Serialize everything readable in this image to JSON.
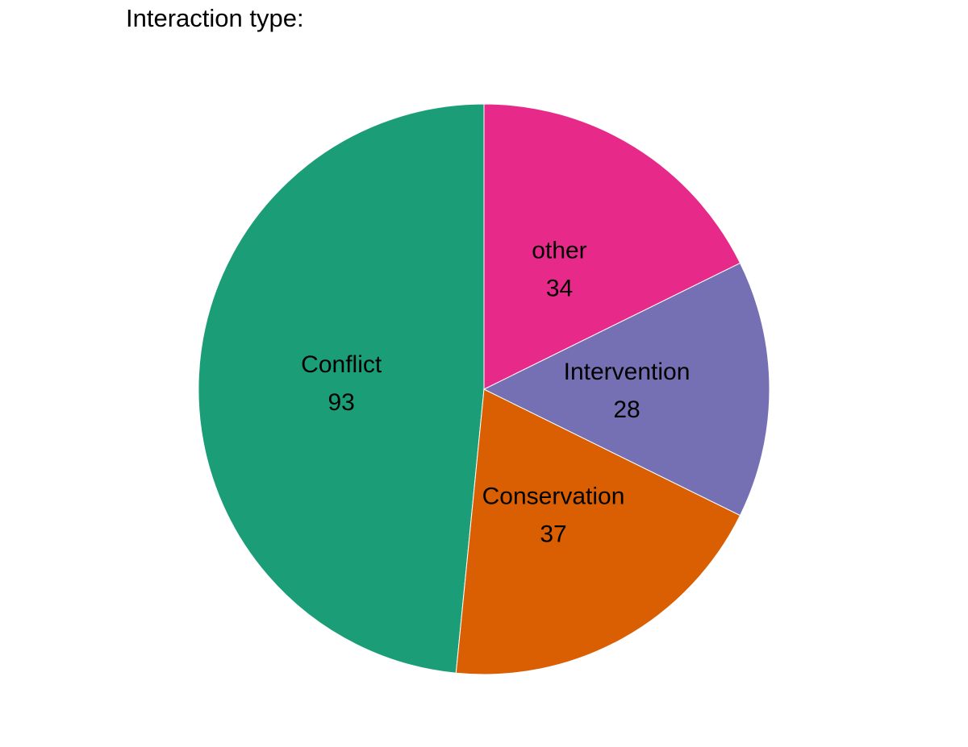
{
  "chart_data": {
    "type": "pie",
    "title": "Interaction type:",
    "start": "12 o'clock",
    "direction": "counterclockwise",
    "slices": [
      {
        "label": "Conflict",
        "value": 93,
        "color": "#1B9E77"
      },
      {
        "label": "Conservation",
        "value": 37,
        "color": "#D95F02"
      },
      {
        "label": "Intervention",
        "value": 28,
        "color": "#7570B3"
      },
      {
        "label": "other",
        "value": 34,
        "color": "#E7298A"
      }
    ]
  }
}
